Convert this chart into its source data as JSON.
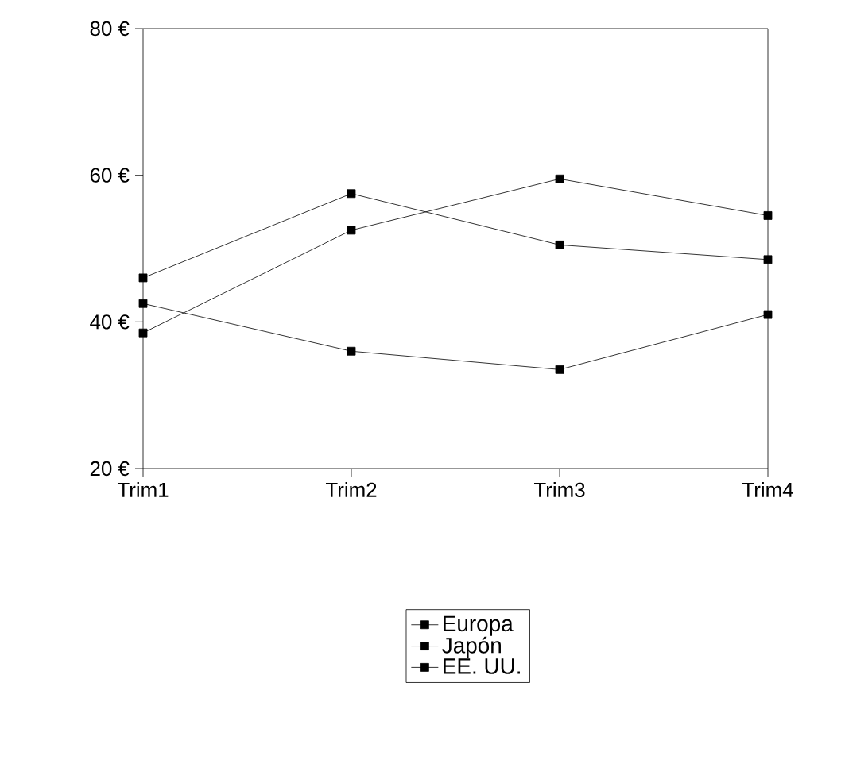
{
  "chart_data": {
    "type": "line",
    "categories": [
      "Trim1",
      "Trim2",
      "Trim3",
      "Trim4"
    ],
    "series": [
      {
        "name": "Europa",
        "color": "#000000",
        "values": [
          46,
          57.5,
          50.5,
          48.5
        ]
      },
      {
        "name": "Japón",
        "color": "#000000",
        "values": [
          38.5,
          52.5,
          59.5,
          54.5
        ]
      },
      {
        "name": "EE. UU.",
        "color": "#000000",
        "values": [
          42.5,
          36,
          33.5,
          41
        ]
      }
    ],
    "ylim": [
      20,
      80
    ],
    "yticks": [
      {
        "value": 20,
        "label": "20 €"
      },
      {
        "value": 40,
        "label": "40 €"
      },
      {
        "value": 60,
        "label": "60 €"
      },
      {
        "value": 80,
        "label": "80 €"
      }
    ],
    "grid": false,
    "legend": "bottom",
    "marker": "square",
    "line_style": "solid"
  }
}
